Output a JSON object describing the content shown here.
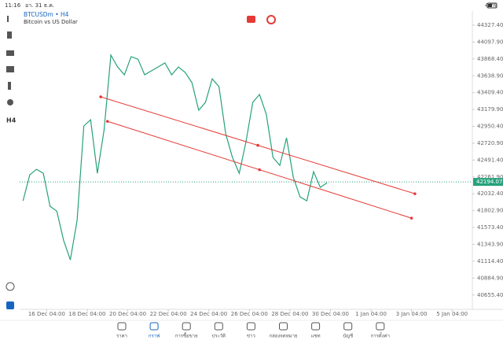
{
  "status_bar": {
    "time": "11:16",
    "date": "อา. 31 ธ.ค.",
    "battery": "47%"
  },
  "symbol": {
    "title": "BTCUSDm • H4",
    "description": "Bitcoin vs US Dollar"
  },
  "toolbar": {
    "timeframe": "H4"
  },
  "chart_data": {
    "type": "line",
    "color": "#26a17b",
    "x": [
      "15 Dec 00:00",
      "15 Dec 08:00",
      "15 Dec 16:00",
      "16 Dec 00:00",
      "16 Dec 08:00",
      "16 Dec 16:00",
      "17 Dec 00:00",
      "17 Dec 08:00",
      "17 Dec 16:00",
      "18 Dec 00:00",
      "18 Dec 08:00",
      "18 Dec 16:00",
      "19 Dec 00:00",
      "19 Dec 08:00",
      "19 Dec 16:00",
      "20 Dec 00:00",
      "20 Dec 08:00",
      "20 Dec 16:00",
      "21 Dec 00:00",
      "21 Dec 08:00",
      "21 Dec 16:00",
      "22 Dec 00:00",
      "22 Dec 08:00",
      "22 Dec 16:00",
      "23 Dec 00:00",
      "23 Dec 08:00",
      "23 Dec 16:00",
      "24 Dec 00:00",
      "24 Dec 08:00",
      "24 Dec 16:00",
      "25 Dec 00:00",
      "25 Dec 08:00",
      "25 Dec 16:00",
      "26 Dec 00:00",
      "26 Dec 08:00",
      "26 Dec 16:00",
      "27 Dec 00:00",
      "27 Dec 08:00",
      "27 Dec 16:00",
      "28 Dec 00:00",
      "28 Dec 08:00",
      "28 Dec 16:00",
      "29 Dec 00:00",
      "29 Dec 08:00",
      "29 Dec 16:00",
      "30 Dec 00:00"
    ],
    "values": [
      41937,
      42291,
      42366,
      42312,
      41862,
      41797,
      41401,
      41133,
      41669,
      42955,
      43041,
      42312,
      42902,
      43920,
      43759,
      43652,
      43899,
      43866,
      43652,
      43706,
      43759,
      43813,
      43652,
      43759,
      43684,
      43545,
      43170,
      43277,
      43598,
      43491,
      42848,
      42526,
      42312,
      42741,
      43277,
      43384,
      43116,
      42526,
      42419,
      42794,
      42258,
      41990,
      41937,
      42333,
      42119,
      42183
    ],
    "current_price": 42194.07,
    "current_price_color": "#26a17b",
    "trendlines": [
      {
        "x": [
          "18 Dec 20:00",
          "3 Jan 08:00"
        ],
        "values": [
          43352,
          42033
        ],
        "color": "#e53935"
      },
      {
        "x": [
          "19 Dec 04:00",
          "3 Jan 04:00"
        ],
        "values": [
          43019,
          41701
        ],
        "color": "#e53935"
      }
    ],
    "xlim": [
      "14 Dec 20:00",
      "6 Jan 04:00"
    ],
    "xticks": [
      "16 Dec 04:00",
      "18 Dec 04:00",
      "20 Dec 04:00",
      "22 Dec 04:00",
      "24 Dec 04:00",
      "26 Dec 04:00",
      "28 Dec 04:00",
      "30 Dec 04:00",
      "1 Jan 04:00",
      "3 Jan 04:00",
      "5 Jan 04:00"
    ],
    "ylim": [
      40460,
      44520
    ],
    "yticks": [
      {
        "value": 44327.4,
        "label": "44327.40"
      },
      {
        "value": 44097.9,
        "label": "44097.90"
      },
      {
        "value": 43868.4,
        "label": "43868.40"
      },
      {
        "value": 43638.9,
        "label": "43638.90"
      },
      {
        "value": 43409.4,
        "label": "43409.40"
      },
      {
        "value": 43179.9,
        "label": "43179.90"
      },
      {
        "value": 42950.4,
        "label": "42950.40"
      },
      {
        "value": 42720.9,
        "label": "42720.90"
      },
      {
        "value": 42491.4,
        "label": "42491.40"
      },
      {
        "value": 42261.9,
        "label": "42261.90"
      },
      {
        "value": 42032.4,
        "label": "42032.40"
      },
      {
        "value": 41802.9,
        "label": "41802.90"
      },
      {
        "value": 41573.4,
        "label": "41573.40"
      },
      {
        "value": 41343.9,
        "label": "41343.90"
      },
      {
        "value": 41114.4,
        "label": "41114.40"
      },
      {
        "value": 40884.9,
        "label": "40884.90"
      },
      {
        "value": 40655.4,
        "label": "40655.40"
      }
    ]
  },
  "nav": [
    "ราคา",
    "กราฟ",
    "การซื้อขาย",
    "ประวัติ",
    "ข่าว",
    "กล่องจดหมาย",
    "แชท",
    "บัญชี",
    "การตั้งค่า"
  ]
}
